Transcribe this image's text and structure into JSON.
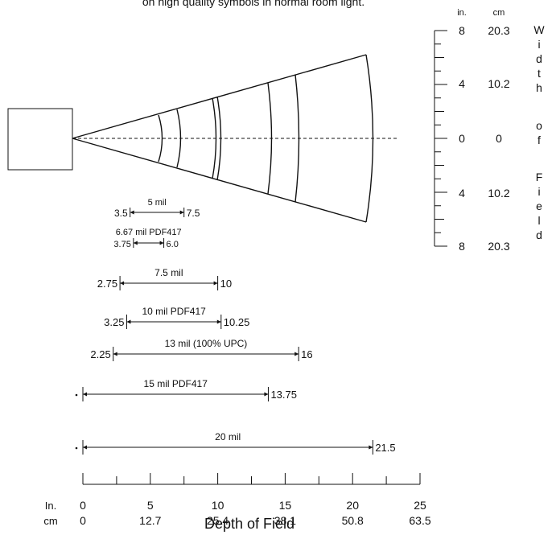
{
  "caption_fragment": "on high quality symbols in normal room light.",
  "width_scale": {
    "unit_in": "in.",
    "unit_cm": "cm",
    "inches": [
      "8",
      "4",
      "0",
      "4",
      "8"
    ],
    "centimeters": [
      "20.3",
      "10.2",
      "0",
      "10.2",
      "20.3"
    ],
    "vertical_label_letters": [
      "W",
      "i",
      "d",
      "t",
      "h",
      "o",
      "f",
      "F",
      "i",
      "e",
      "l",
      "d"
    ]
  },
  "depth_axis": {
    "unit_in": "In.",
    "unit_cm": "cm",
    "inches": [
      "0",
      "5",
      "10",
      "15",
      "20",
      "25"
    ],
    "centimeters": [
      "0",
      "12.7",
      "25.4",
      "38.1",
      "50.8",
      "63.5"
    ],
    "title": "Depth of Field"
  },
  "symbol_ranges": [
    {
      "label": "5 mil",
      "near": "3.5",
      "far": "7.5",
      "near_in": 3.5,
      "far_in": 7.5
    },
    {
      "label": "6.67 mil PDF417",
      "near": "3.75",
      "far": "6.0",
      "near_in": 3.75,
      "far_in": 6.0
    },
    {
      "label": "7.5 mil",
      "near": "2.75",
      "far": "10",
      "near_in": 2.75,
      "far_in": 10
    },
    {
      "label": "10 mil PDF417",
      "near": "3.25",
      "far": "10.25",
      "near_in": 3.25,
      "far_in": 10.25
    },
    {
      "label": "13 mil (100% UPC)",
      "near": "2.25",
      "far": "16",
      "near_in": 2.25,
      "far_in": 16
    },
    {
      "label": "15 mil PDF417",
      "near": "",
      "far": "13.75",
      "near_in": 0,
      "far_in": 13.75
    },
    {
      "label": "20 mil",
      "near": "",
      "far": "21.5",
      "near_in": 0,
      "far_in": 21.5
    }
  ]
}
